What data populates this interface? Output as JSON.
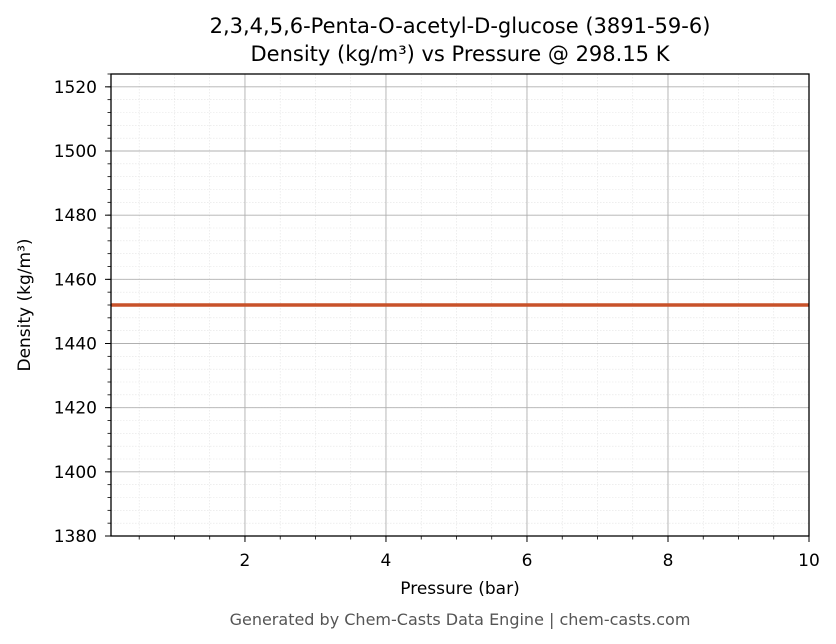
{
  "chart_data": {
    "type": "line",
    "title": "2,3,4,5,6-Penta-O-acetyl-D-glucose (3891-59-6)",
    "subtitle": "Density (kg/m³) vs Pressure @ 298.15 K",
    "xlabel": "Pressure (bar)",
    "ylabel": "Density (kg/m³)",
    "xlim": [
      0.1,
      10
    ],
    "ylim": [
      1380,
      1524
    ],
    "x_ticks": [
      2,
      4,
      6,
      8,
      10
    ],
    "y_ticks": [
      1380,
      1400,
      1420,
      1440,
      1460,
      1480,
      1500,
      1520
    ],
    "grid": true,
    "minor_grid": true,
    "series": [
      {
        "color": "#c8522a",
        "x": [
          0.1,
          1,
          2,
          3,
          4,
          5,
          6,
          7,
          8,
          9,
          10
        ],
        "y": [
          1452,
          1452,
          1452,
          1452,
          1452,
          1452,
          1452,
          1452,
          1452,
          1452,
          1452
        ]
      }
    ]
  },
  "footer": "Generated by Chem-Casts Data Engine | chem-casts.com"
}
